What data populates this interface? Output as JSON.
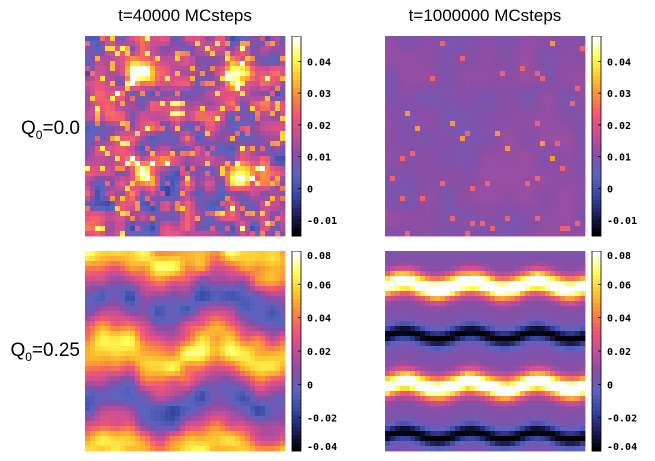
{
  "figure": {
    "column_titles": [
      "t=40000 MCsteps",
      "t=1000000 MCsteps"
    ],
    "row_labels": [
      {
        "main": "Q",
        "sub": "0",
        "value": "=0.0"
      },
      {
        "main": "Q",
        "sub": "0",
        "value": "=0.25"
      }
    ]
  },
  "colors": {
    "colormap_stops": [
      "#000000",
      "#1e1f5f",
      "#3848a4",
      "#5a64c0",
      "#8a4ea6",
      "#c24e98",
      "#ef5578",
      "#f98a3e",
      "#fcc72c",
      "#ffff5a",
      "#ffffff"
    ]
  },
  "chart_data": [
    {
      "type": "heatmap",
      "row": "Q0=0.0",
      "column": "t=40000 MCsteps",
      "pattern": "fine-clusters",
      "vlim": [
        -0.015,
        0.048
      ],
      "colorbar_ticks": [
        "0.04",
        "0.03",
        "0.02",
        "0.01",
        "0",
        "-0.01"
      ],
      "colorbar_tick_values": [
        0.04,
        0.03,
        0.02,
        0.01,
        0,
        -0.01
      ]
    },
    {
      "type": "heatmap",
      "row": "Q0=0.0",
      "column": "t=1000000 MCsteps",
      "pattern": "sparse-points",
      "vlim": [
        -0.015,
        0.048
      ],
      "colorbar_ticks": [
        "0.04",
        "0.03",
        "0.02",
        "0.01",
        "0",
        "-0.01"
      ],
      "colorbar_tick_values": [
        0.04,
        0.03,
        0.02,
        0.01,
        0,
        -0.01
      ]
    },
    {
      "type": "heatmap",
      "row": "Q0=0.25",
      "column": "t=40000 MCsteps",
      "pattern": "blurred-bands",
      "vlim": [
        -0.04,
        0.08
      ],
      "colorbar_ticks": [
        "0.08",
        "0.06",
        "0.04",
        "0.02",
        "0",
        "-0.02",
        "-0.04"
      ],
      "colorbar_tick_values": [
        0.08,
        0.06,
        0.04,
        0.02,
        0,
        -0.02,
        -0.04
      ]
    },
    {
      "type": "heatmap",
      "row": "Q0=0.25",
      "column": "t=1000000 MCsteps",
      "pattern": "sharp-bands",
      "vlim": [
        -0.04,
        0.08
      ],
      "colorbar_ticks": [
        "0.08",
        "0.06",
        "0.04",
        "0.02",
        "0",
        "-0.02",
        "-0.04"
      ],
      "colorbar_tick_values": [
        0.08,
        0.06,
        0.04,
        0.02,
        0,
        -0.02,
        -0.04
      ]
    }
  ]
}
